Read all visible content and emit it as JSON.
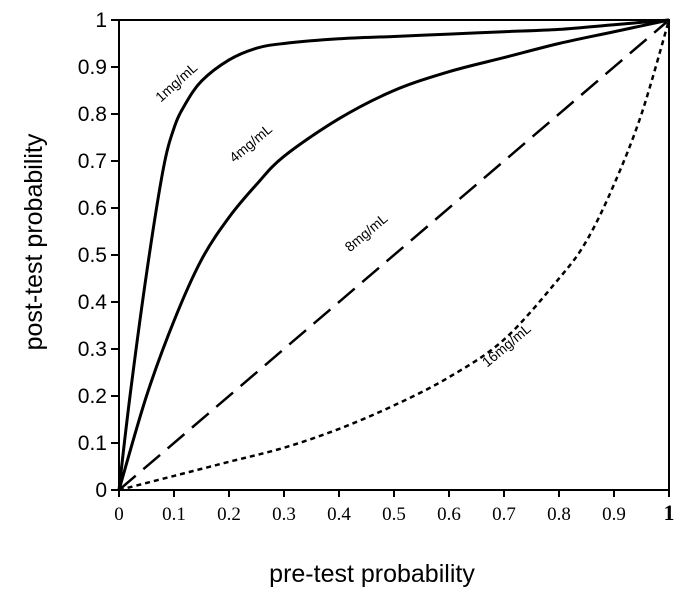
{
  "chart_data": {
    "type": "line",
    "xlabel": "pre-test probability",
    "ylabel": "post-test probability",
    "xlim": [
      0,
      1
    ],
    "ylim": [
      0,
      1
    ],
    "grid": false,
    "x_ticks": [
      "0",
      "0.1",
      "0.2",
      "0.3",
      "0.4",
      "0.5",
      "0.6",
      "0.7",
      "0.8",
      "0.9",
      "1"
    ],
    "y_ticks": [
      "0",
      "0.1",
      "0.2",
      "0.3",
      "0.4",
      "0.5",
      "0.6",
      "0.7",
      "0.8",
      "0.9",
      "1"
    ],
    "series": [
      {
        "name": "1mg/mL",
        "line_style": "solid",
        "x": [
          0,
          0.02,
          0.05,
          0.08,
          0.1,
          0.12,
          0.15,
          0.2,
          0.25,
          0.3,
          0.4,
          0.5,
          0.6,
          0.7,
          0.8,
          0.9,
          1.0
        ],
        "y": [
          0,
          0.2,
          0.46,
          0.68,
          0.77,
          0.82,
          0.87,
          0.915,
          0.94,
          0.95,
          0.96,
          0.965,
          0.97,
          0.975,
          0.98,
          0.99,
          1.0
        ]
      },
      {
        "name": "4mg/mL",
        "line_style": "solid",
        "x": [
          0,
          0.05,
          0.1,
          0.15,
          0.2,
          0.25,
          0.3,
          0.4,
          0.5,
          0.6,
          0.7,
          0.8,
          0.9,
          1.0
        ],
        "y": [
          0,
          0.2,
          0.36,
          0.49,
          0.58,
          0.65,
          0.71,
          0.79,
          0.85,
          0.89,
          0.92,
          0.95,
          0.975,
          1.0
        ]
      },
      {
        "name": "8mg/mL",
        "line_style": "dashed",
        "x": [
          0,
          1
        ],
        "y": [
          0,
          1
        ]
      },
      {
        "name": "16mg/mL",
        "line_style": "dotted",
        "x": [
          0,
          0.1,
          0.2,
          0.3,
          0.4,
          0.5,
          0.6,
          0.7,
          0.8,
          0.85,
          0.9,
          0.95,
          1.0
        ],
        "y": [
          0,
          0.03,
          0.06,
          0.09,
          0.13,
          0.18,
          0.24,
          0.32,
          0.45,
          0.53,
          0.65,
          0.8,
          1.0
        ]
      }
    ],
    "annotations": [
      {
        "text": "1mg/mL",
        "x": 0.11,
        "y": 0.86,
        "angle": -42
      },
      {
        "text": "4mg/mL",
        "x": 0.245,
        "y": 0.73,
        "angle": -40
      },
      {
        "text": "8mg/mL",
        "x": 0.455,
        "y": 0.54,
        "angle": -40
      },
      {
        "text": "16mg/mL",
        "x": 0.71,
        "y": 0.3,
        "angle": -40
      }
    ]
  }
}
